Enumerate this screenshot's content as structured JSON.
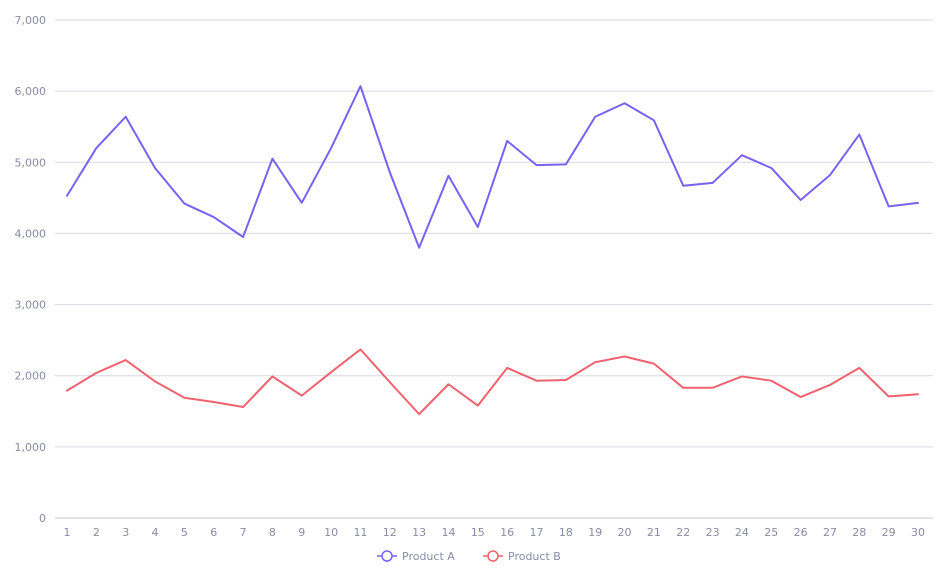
{
  "chart_data": {
    "type": "line",
    "x": [
      1,
      2,
      3,
      4,
      5,
      6,
      7,
      8,
      9,
      10,
      11,
      12,
      13,
      14,
      15,
      16,
      17,
      18,
      19,
      20,
      21,
      22,
      23,
      24,
      25,
      26,
      27,
      28,
      29,
      30
    ],
    "ylim": [
      0,
      7000
    ],
    "yticks": [
      0,
      1000,
      2000,
      3000,
      4000,
      5000,
      6000,
      7000
    ],
    "ytick_labels": [
      "0",
      "1,000",
      "2,000",
      "3,000",
      "4,000",
      "5,000",
      "6,000",
      "7,000"
    ],
    "grid": true,
    "legend_position": "bottom-center",
    "series": [
      {
        "name": "Product A",
        "color": "#7b61f0",
        "values": [
          4530,
          5200,
          5640,
          4920,
          4420,
          4230,
          3950,
          5050,
          4430,
          5200,
          6070,
          4860,
          3800,
          4810,
          4090,
          5300,
          4960,
          4970,
          5640,
          5830,
          5590,
          4670,
          4710,
          5100,
          4920,
          4470,
          4820,
          5390,
          4380,
          4430
        ]
      },
      {
        "name": "Product B",
        "color": "#f0626e",
        "values": [
          1790,
          2040,
          2220,
          1920,
          1690,
          1630,
          1560,
          1990,
          1720,
          2050,
          2370,
          1910,
          1460,
          1880,
          1580,
          2110,
          1930,
          1940,
          2190,
          2270,
          2170,
          1830,
          1830,
          1990,
          1930,
          1700,
          1870,
          2110,
          1710,
          1740
        ]
      }
    ]
  }
}
